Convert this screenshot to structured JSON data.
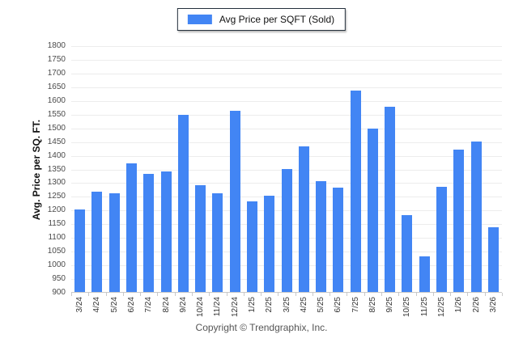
{
  "legend": {
    "label": "Avg Price per SQFT (Sold)",
    "swatch_color": "#4285f4"
  },
  "y_axis": {
    "title": "Avg. Price per SQ. FT.",
    "min": 900,
    "max": 1800,
    "step": 50
  },
  "footer": {
    "copyright": "Copyright © Trendgraphix, Inc."
  },
  "colors": {
    "bar": "#4285f4",
    "gridline": "#ececec",
    "axis_line": "#c9c9c9",
    "y_label_text": "#4a4a4a",
    "x_label_text": "#333333",
    "footer_text": "#555555",
    "legend_border": "#24303c"
  },
  "chart_data": {
    "type": "bar",
    "title": "Avg Price per SQFT (Sold)",
    "xlabel": "",
    "ylabel": "Avg. Price per SQ. FT.",
    "ylim": [
      900,
      1800
    ],
    "ytick_step": 50,
    "grid": true,
    "legend_position": "top-center",
    "series_color": "#4285f4",
    "categories": [
      "3/24",
      "4/24",
      "5/24",
      "6/24",
      "7/24",
      "8/24",
      "9/24",
      "10/24",
      "11/24",
      "12/24",
      "1/25",
      "2/25",
      "3/25",
      "4/25",
      "5/25",
      "6/25",
      "7/25",
      "8/25",
      "9/25",
      "10/25",
      "11/25",
      "12/25",
      "1/26",
      "2/26",
      "3/26"
    ],
    "values": [
      1200,
      1265,
      1260,
      1370,
      1330,
      1340,
      1545,
      1290,
      1260,
      1560,
      1230,
      1250,
      1350,
      1430,
      1305,
      1280,
      1635,
      1495,
      1575,
      1180,
      1030,
      1285,
      1420,
      1450,
      1135
    ]
  }
}
